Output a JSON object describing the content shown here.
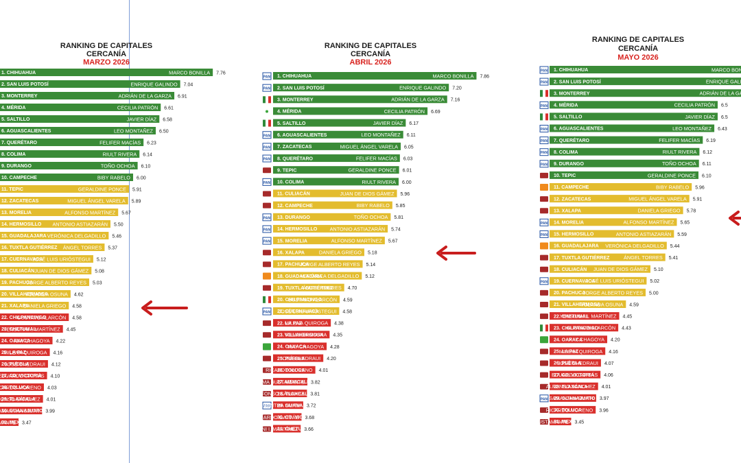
{
  "colors": {
    "green": "#3a8b37",
    "yellow": "#e3bc2e",
    "red": "#d9302c",
    "month": "#d8231f",
    "arrow": "#c81d1d",
    "text": "#1c1c1c"
  },
  "panels": [
    {
      "title1": "RANKING DE CAPITALES",
      "title2": "CERCANÍA",
      "month": "MARZO 2026",
      "chart_data": {
        "type": "bar",
        "title": "RANKING DE CAPITALES CERCANÍA MARZO 2026",
        "categories": [
          "1. CHIHUAHUA",
          "2. SAN LUIS POTOSÍ",
          "3. MONTERREY",
          "4. MÉRIDA",
          "5. SALTILLO",
          "6. AGUASCALIENTES",
          "7. QUERÉTARO",
          "8. COLIMA",
          "9. DURANGO",
          "10. CAMPECHE",
          "11. TEPIC",
          "12. ZACATECAS",
          "13. MORELIA",
          "14. HERMOSILLO",
          "15. GUADALAJARA",
          "16. TUXTLA GUTIÉRREZ",
          "17. CUERNAVACA",
          "18. CULIACÁN",
          "19. PACHUCA",
          "20. VILLAHERMOSA",
          "21. XALAPA",
          "22. CHILPANCINGO",
          "23. CHETUMAL",
          "24. OAXACA",
          "25. LA PAZ",
          "26. PUEBLA",
          "27. CD. VICTORIA",
          "28. TOLUCA",
          "29. TLAXCALA",
          "30. GUANAJUATO",
          "31. MEXICALI"
        ],
        "names": [
          "MARCO BONILLA",
          "ENRIQUE GALINDO",
          "ADRIÁN DE LA GARZA",
          "CECILIA PATRÓN",
          "JAVIER DÍAZ",
          "LEO MONTAÑEZ",
          "FELIFER MACÍAS",
          "RIULT RIVERA",
          "TOÑO OCHOA",
          "BIBY RABELO",
          "GERALDINE PONCE",
          "MIGUEL ÁNGEL VARELA",
          "ALFONSO MARTÍNEZ",
          "ANTONIO ASTIAZARÁN",
          "VERÓNICA DELGADILLO",
          "ÁNGEL TORRES",
          "JOSÉ LUIS URIÓSTEGUI",
          "JUAN DE DIOS GÁMEZ",
          "JORGE ALBERTO REYES",
          "YOLANDA OSUNA",
          "DANIELA GRIEGO",
          "GUSTAVO ALARCÓN",
          "YENSUNNI I. MARTÍNEZ",
          "RAY CHAGOYA",
          "MILENA QUIROGA",
          "JOSÉ CHEDRAUI",
          "EDUARDO GATTÁS",
          "RICARDO MORENO",
          "ALFONSO SÁNCHEZ",
          "SAMANTHA SMITH",
          "NORMA BUSTAMANTE"
        ],
        "values": [
          7.76,
          7.04,
          6.91,
          6.61,
          6.58,
          6.5,
          6.23,
          6.14,
          6.1,
          6.0,
          5.91,
          5.89,
          5.67,
          5.5,
          5.46,
          5.37,
          5.12,
          5.08,
          5.03,
          4.62,
          4.58,
          4.58,
          4.45,
          4.22,
          4.16,
          4.12,
          4.1,
          4.03,
          4.01,
          3.99,
          3.47
        ],
        "tiers": [
          "green",
          "green",
          "green",
          "green",
          "green",
          "green",
          "green",
          "green",
          "green",
          "green",
          "yellow",
          "yellow",
          "yellow",
          "yellow",
          "yellow",
          "yellow",
          "yellow",
          "yellow",
          "yellow",
          "yellow",
          "yellow",
          "red",
          "red",
          "red",
          "red",
          "red",
          "red",
          "red",
          "red",
          "red",
          "red"
        ],
        "logos": [],
        "highlight": 20
      }
    },
    {
      "title1": "RANKING DE CAPITALES",
      "title2": "CERCANÍA",
      "month": "ABRIL 2026",
      "chart_data": {
        "type": "bar",
        "title": "RANKING DE CAPITALES CERCANÍA ABRIL 2026",
        "categories": [
          "1. CHIHUAHUA",
          "2. SAN LUIS POTOSÍ",
          "3. MONTERREY",
          "4. MÉRIDA",
          "5. SALTILLO",
          "6. AGUASCALIENTES",
          "7. ZACATECAS",
          "8. QUERÉTARO",
          "9. TEPIC",
          "10. COLIMA",
          "11. CULIACÁN",
          "12. CAMPECHE",
          "13. DURANGO",
          "14. HERMOSILLO",
          "15. MORELIA",
          "16. XALAPA",
          "17. PACHUCA",
          "18. GUADALAJARA",
          "19. TUXTLA GUTIÉRREZ",
          "20. CHILPANCINGO",
          "21. CUERNAVACA",
          "22. LA PAZ",
          "23. VILLAHERMOSA",
          "24. OAXACA",
          "25. PUEBLA",
          "26. TOLUCA",
          "27. MEXICALI",
          "28. TLAXCALA",
          "29. GUANAJUATO",
          "30. CD. VICTORIA",
          "31. CHETUMAL"
        ],
        "names": [
          "MARCO BONILLA",
          "ENRIQUE GALINDO",
          "ADRIÁN DE LA GARZA",
          "CECILIA PATRÓN",
          "JAVIER DÍAZ",
          "LEO MONTAÑEZ",
          "MIGUEL ÁNGEL VARELA",
          "FELIFER MACÍAS",
          "GERALDINE PONCE",
          "RIULT RIVERA",
          "JUAN DE DIOS GÁMEZ",
          "BIBY RABELO",
          "TOÑO OCHOA",
          "ANTONIO ASTIAZARÁN",
          "ALFONSO MARTÍNEZ",
          "DANIELA GRIEGO",
          "JORGE ALBERTO REYES",
          "VERÓNICA DELGADILLO",
          "ÁNGEL TORRES",
          "GUSTAVO ALARCÓN",
          "JOSÉ LUIS URIÓSTEGUI",
          "MILENA QUIROGA",
          "YOLANDA OSUNA",
          "RAY CHAGOYA",
          "JOSÉ CHEDRAUI",
          "RICARDO MORENO",
          "NORMA BUSTAMANTE",
          "ALFONSO SÁNCHEZ",
          "SAMANTHA SMITH",
          "EDUARDO GATTÁS",
          "YENSUNNI I. MARTÍNEZ"
        ],
        "values": [
          7.86,
          7.2,
          7.16,
          6.69,
          6.17,
          6.11,
          6.05,
          6.03,
          6.01,
          6.0,
          5.96,
          5.85,
          5.81,
          5.74,
          5.67,
          5.18,
          5.14,
          5.12,
          4.7,
          4.59,
          4.58,
          4.38,
          4.35,
          4.28,
          4.2,
          4.01,
          3.82,
          3.81,
          3.72,
          3.68,
          3.66
        ],
        "tiers": [
          "green",
          "green",
          "green",
          "green",
          "green",
          "green",
          "green",
          "green",
          "green",
          "green",
          "yellow",
          "yellow",
          "yellow",
          "yellow",
          "yellow",
          "yellow",
          "yellow",
          "yellow",
          "yellow",
          "yellow",
          "yellow",
          "red",
          "red",
          "red",
          "red",
          "red",
          "red",
          "red",
          "red",
          "red",
          "red"
        ],
        "logos": [
          "PAN",
          "PAN",
          "PRI",
          "dot",
          "PRI",
          "PAN",
          "PAN",
          "PAN",
          "MOR",
          "PAN",
          "MOR",
          "MOR",
          "PAN",
          "PAN",
          "PAN",
          "MOR",
          "MOR",
          "MC",
          "MOR",
          "PRI",
          "PAN",
          "MOR",
          "MOR",
          "PVEM",
          "MOR",
          "MOR",
          "MOR",
          "MOR",
          "PAN",
          "MOR",
          "MOR"
        ],
        "highlight": 15
      }
    },
    {
      "title1": "RANKING DE CAPITALES",
      "title2": "CERCANÍA",
      "month": "MAYO 2026",
      "chart_data": {
        "type": "bar",
        "title": "RANKING DE CAPITALES CERCANÍA MAYO 2026",
        "categories": [
          "1. CHIHUAHUA",
          "2. SAN LUIS POTOSÍ",
          "3. MONTERREY",
          "4. MÉRIDA",
          "5. SALTILLO",
          "6. AGUASCALIENTES",
          "7. QUERÉTARO",
          "8. COLIMA",
          "9. DURANGO",
          "10. TEPIC",
          "11. CAMPECHE",
          "12. ZACATECAS",
          "13. XALAPA",
          "14. MORELIA",
          "15. HERMOSILLO",
          "16. GUADALAJARA",
          "17. TUXTLA GUTIÉRREZ",
          "18. CULIACÁN",
          "19. CUERNAVACA",
          "20. PACHUCA",
          "21. VILLAHERMOSA",
          "22. CHETUMAL",
          "23. CHILPANCINGO",
          "24. OAXACA",
          "25. LA PAZ",
          "26. PUEBLA",
          "27. CD. VICTORIA",
          "28. TLAXCALA",
          "29. GUANAJUATO",
          "30. TOLUCA",
          "31. MEXICALI"
        ],
        "names": [
          "MARCO BONILLA",
          "ENRIQUE GALINDO",
          "ADRIÁN DE LA GARZA",
          "CECILIA PATRÓN",
          "JAVIER DÍAZ",
          "LEO MONTAÑEZ",
          "FELIFER MACÍAS",
          "RIULT RIVERA",
          "TOÑO OCHOA",
          "GERALDINE PONCE",
          "BIBY RABELO",
          "MIGUEL ÁNGEL VARELA",
          "DANIELA GRIEGO",
          "ALFONSO MARTÍNEZ",
          "ANTONIO ASTIAZARÁN",
          "VERÓNICA DELGADILLO",
          "ÁNGEL TORRES",
          "JUAN DE DIOS GÁMEZ",
          "JOSÉ LUIS URIÓSTEGUI",
          "JORGE ALBERTO REYES",
          "YOLANDA OSUNA",
          "YENSUNNI I. MARTÍNEZ",
          "GUSTAVO ALARCÓN",
          "RAY CHAGOYA",
          "MILENA QUIROGA",
          "JOSÉ CHEDRAUI",
          "EDUARDO GATTÁS",
          "ALFONSO SÁNCHEZ",
          "SAMANTHA SMITH",
          "RICARDO MORENO",
          "NORMA BUSTAMANTE"
        ],
        "values": [
          null,
          null,
          null,
          6.5,
          6.5,
          6.43,
          6.19,
          6.12,
          6.11,
          6.1,
          5.96,
          5.91,
          5.78,
          5.65,
          5.59,
          5.44,
          5.41,
          5.1,
          5.02,
          5.0,
          4.59,
          4.45,
          4.43,
          4.2,
          4.16,
          4.07,
          4.06,
          4.01,
          3.97,
          3.96,
          3.45
        ],
        "labels": [
          "",
          "",
          "",
          "6.5",
          "6.5",
          "6.43",
          "6.19",
          "6.12",
          "6.11",
          "6.10",
          "5.96",
          "5.91",
          "5.78",
          "5.65",
          "5.59",
          "5.44",
          "5.41",
          "5.10",
          "5.02",
          "5.00",
          "4.59",
          "4.45",
          "4.43",
          "4.20",
          "4.16",
          "4.07",
          "4.06",
          "4.01",
          "3.97",
          "3.96",
          "3.45"
        ],
        "tiers": [
          "green",
          "green",
          "green",
          "green",
          "green",
          "green",
          "green",
          "green",
          "green",
          "green",
          "yellow",
          "yellow",
          "yellow",
          "yellow",
          "yellow",
          "yellow",
          "yellow",
          "yellow",
          "yellow",
          "yellow",
          "yellow",
          "red",
          "red",
          "red",
          "red",
          "red",
          "red",
          "red",
          "red",
          "red",
          "red"
        ],
        "logos": [
          "PAN",
          "PAN",
          "PRI",
          "PAN",
          "PRI",
          "PAN",
          "PAN",
          "PAN",
          "PAN",
          "MOR",
          "MC",
          "MOR",
          "MOR",
          "PAN",
          "PAN",
          "MC",
          "MOR",
          "MOR",
          "PAN",
          "MOR",
          "MOR",
          "MOR",
          "PRI",
          "PVEM",
          "MOR",
          "MOR",
          "MOR",
          "MOR",
          "PAN",
          "MOR",
          "MOR"
        ],
        "highlight": 12
      }
    }
  ]
}
